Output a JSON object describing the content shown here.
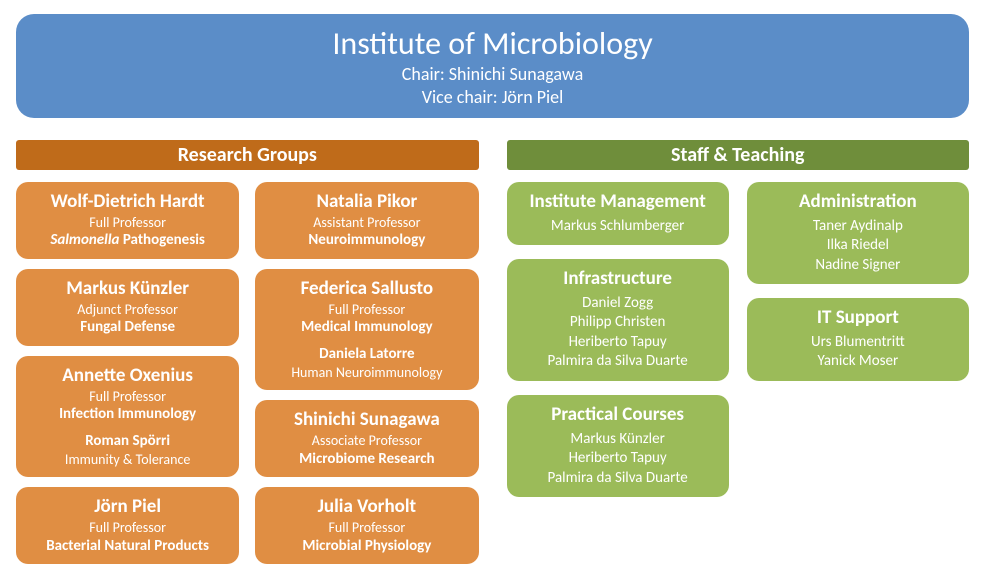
{
  "colors": {
    "header_bg": "#5b8dc8",
    "research_header_bg": "#bf6b1a",
    "research_card_bg": "#e08e43",
    "staff_header_bg": "#6f8e3b",
    "staff_card_bg": "#9bbb59",
    "text": "#ffffff"
  },
  "header": {
    "title": "Institute of Microbiology",
    "chair": "Chair: Shinichi Sunagawa",
    "vicechair": "Vice chair: Jörn Piel"
  },
  "research": {
    "title": "Research Groups",
    "left": [
      {
        "name": "Wolf-Dietrich Hardt",
        "role": "Full Professor",
        "topic_html": "<em>Salmonella</em> Pathogenesis"
      },
      {
        "name": "Markus Künzler",
        "role": "Adjunct Professor",
        "topic_html": "Fungal Defense"
      },
      {
        "name": "Annette Oxenius",
        "role": "Full Professor",
        "topic_html": "Infection Immunology",
        "subname": "Roman Spörri",
        "subtopic": "Immunity & Tolerance"
      },
      {
        "name": "Jörn Piel",
        "role": "Full Professor",
        "topic_html": "Bacterial Natural Products"
      }
    ],
    "right": [
      {
        "name": "Natalia Pikor",
        "role": "Assistant Professor",
        "topic_html": "Neuroimmunology"
      },
      {
        "name": "Federica Sallusto",
        "role": "Full Professor",
        "topic_html": "Medical Immunology",
        "subname": "Daniela Latorre",
        "subtopic": "Human Neuroimmunology"
      },
      {
        "name": "Shinichi Sunagawa",
        "role": "Associate Professor",
        "topic_html": "Microbiome Research"
      },
      {
        "name": "Julia Vorholt",
        "role": "Full Professor",
        "topic_html": "Microbial Physiology"
      }
    ]
  },
  "staff": {
    "title": "Staff & Teaching",
    "left": [
      {
        "name": "Institute Management",
        "lines": [
          "Markus Schlumberger"
        ]
      },
      {
        "name": "Infrastructure",
        "lines": [
          "Daniel Zogg",
          "Philipp Christen",
          "Heriberto Tapuy",
          "Palmira da Silva Duarte"
        ]
      },
      {
        "name": "Practical Courses",
        "lines": [
          "Markus Künzler",
          "Heriberto Tapuy",
          "Palmira da Silva Duarte"
        ]
      }
    ],
    "right": [
      {
        "name": "Administration",
        "lines": [
          "Taner Aydinalp",
          "Ilka Riedel",
          "Nadine Signer"
        ]
      },
      {
        "name": "IT Support",
        "lines": [
          "Urs Blumentritt",
          "Yanick Moser"
        ]
      }
    ]
  }
}
